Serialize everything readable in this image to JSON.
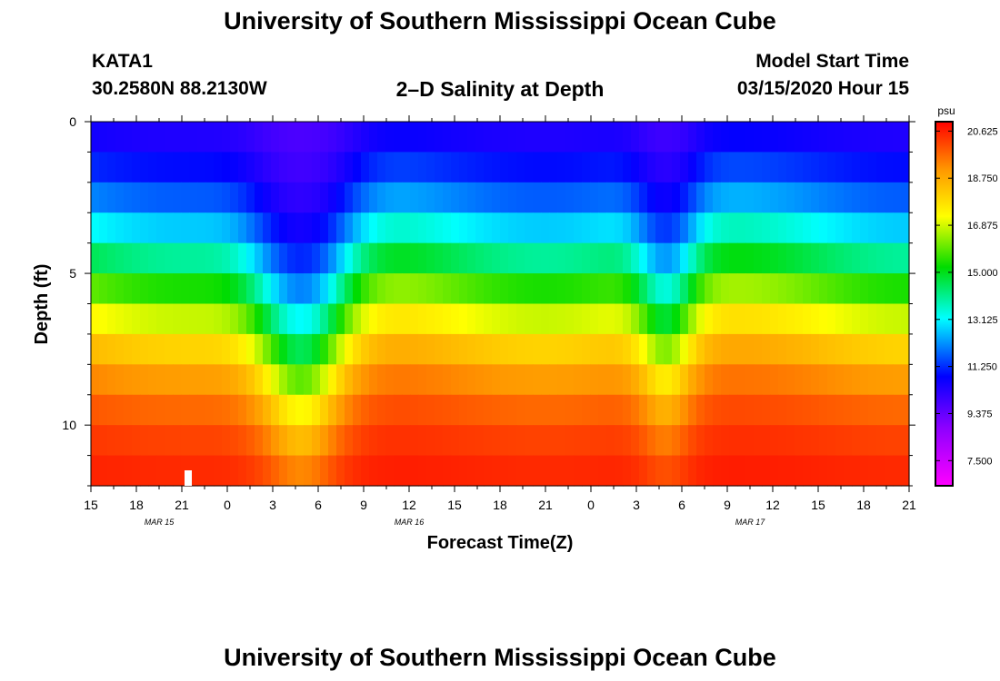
{
  "header": {
    "title": "University of Southern Mississippi Ocean Cube",
    "station": "KATA1",
    "coords": "30.2580N 88.2130W",
    "subtitle": "2–D Salinity at Depth",
    "model_label": "Model Start Time",
    "model_time": "03/15/2020 Hour 15",
    "footer_title": "University of Southern Mississippi Ocean Cube"
  },
  "chart_data": {
    "type": "heatmap",
    "title": "2–D Salinity at Depth",
    "xlabel": "Forecast Time(Z)",
    "ylabel": "Depth (ft)",
    "x_tick_labels": [
      "15",
      "18",
      "21",
      "0",
      "3",
      "6",
      "9",
      "12",
      "15",
      "18",
      "21",
      "0",
      "3",
      "6",
      "9",
      "12",
      "15",
      "18",
      "21"
    ],
    "date_labels": [
      {
        "label": "MAR 15",
        "tick_index": 1.5
      },
      {
        "label": "MAR 16",
        "tick_index": 7
      },
      {
        "label": "MAR 17",
        "tick_index": 14.5
      }
    ],
    "y_ticks": [
      0,
      5,
      10
    ],
    "ylim": [
      0,
      12
    ],
    "time_range_hours": [
      0,
      54
    ],
    "depth_levels_ft": [
      0.5,
      1.5,
      2.5,
      3.5,
      4.5,
      5.5,
      6.5,
      7.5,
      8.5,
      9.5,
      10.5,
      11.5
    ],
    "colorbar": {
      "unit": "psu",
      "min": 6.5,
      "max": 21.0,
      "tick_labels": [
        "20.625",
        "18.750",
        "16.875",
        "15.000",
        "13.125",
        "11.250",
        "9.375",
        "7.500"
      ],
      "tick_values": [
        20.625,
        18.75,
        16.875,
        15.0,
        13.125,
        11.25,
        9.375,
        7.5
      ]
    },
    "salinity_model": {
      "surface": 9.5,
      "bottom": 21.0,
      "baseline_halocline_ft": 5.0,
      "halocline_width_ft": 2.0,
      "mixing_events": [
        {
          "center_hour": 14,
          "depth_ft": 3.2,
          "spread_hours": 3.2
        },
        {
          "center_hour": 38,
          "depth_ft": 2.0,
          "spread_hours": 2.0
        }
      ],
      "tidal_variation_ft": 0.4,
      "tidal_period_hours": 24
    }
  }
}
